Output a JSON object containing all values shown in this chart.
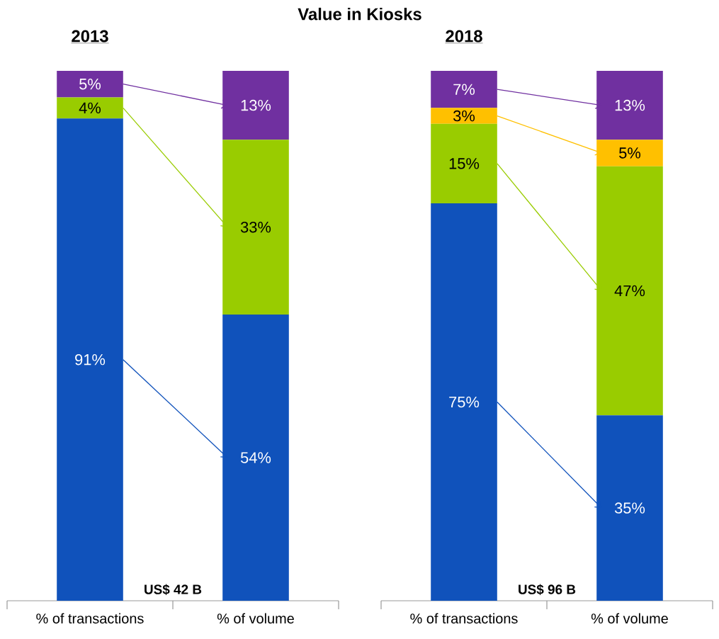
{
  "chart_data": [
    {
      "type": "bar",
      "title": "Value in Kiosks",
      "subtitle": "2013",
      "categories": [
        "% of transactions",
        "% of volume"
      ],
      "stacked": true,
      "ylim": [
        0,
        100
      ],
      "tick_labels": "x",
      "series": [
        {
          "color": "#1052bb",
          "values": [
            91,
            54
          ],
          "value_labels": [
            "91%",
            "54%"
          ]
        },
        {
          "color": "#99cc00",
          "values": [
            4,
            33
          ],
          "value_labels": [
            "4%",
            "33%"
          ]
        },
        {
          "color": "#7030a0",
          "values": [
            5,
            13
          ],
          "value_labels": [
            "5%",
            "13%"
          ]
        }
      ],
      "annotations": [
        "US$ 42 B"
      ]
    },
    {
      "type": "bar",
      "subtitle": "2018",
      "categories": [
        "% of transactions",
        "% of volume"
      ],
      "stacked": true,
      "ylim": [
        0,
        100
      ],
      "tick_labels": "x",
      "series": [
        {
          "color": "#1052bb",
          "values": [
            75,
            35
          ],
          "value_labels": [
            "75%",
            "35%"
          ]
        },
        {
          "color": "#99cc00",
          "values": [
            15,
            47
          ],
          "value_labels": [
            "15%",
            "47%"
          ]
        },
        {
          "color": "#ffc000",
          "values": [
            3,
            5
          ],
          "value_labels": [
            "3%",
            "5%"
          ]
        },
        {
          "color": "#7030a0",
          "values": [
            7,
            13
          ],
          "value_labels": [
            "7%",
            "13%"
          ]
        }
      ],
      "annotations": [
        "US$ 96 B"
      ]
    }
  ]
}
